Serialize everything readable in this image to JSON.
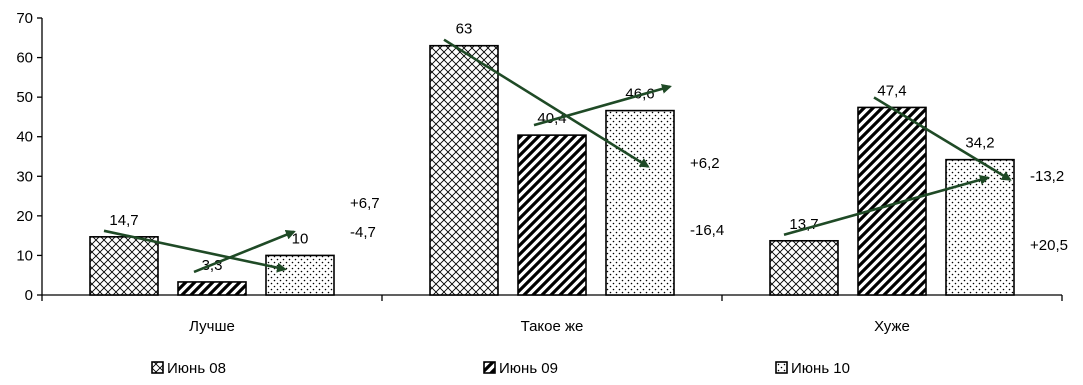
{
  "chart_data": {
    "type": "bar",
    "categories": [
      "Лучше",
      "Такое же",
      "Хуже"
    ],
    "series": [
      {
        "name": "Июнь 08",
        "values": [
          14.7,
          63,
          13.7
        ],
        "labels": [
          "14,7",
          "63",
          "13,7"
        ],
        "pattern": "crosshatch"
      },
      {
        "name": "Июнь 09",
        "values": [
          3.3,
          40.4,
          47.4
        ],
        "labels": [
          "3,3",
          "40,4",
          "47,4"
        ],
        "pattern": "diagonal"
      },
      {
        "name": "Июнь 10",
        "values": [
          10,
          46.6,
          34.2
        ],
        "labels": [
          "10",
          "46,6",
          "34,2"
        ],
        "pattern": "dots"
      }
    ],
    "ylim": [
      0,
      70
    ],
    "yticks": [
      0,
      10,
      20,
      30,
      40,
      50,
      60,
      70
    ],
    "grid": false,
    "legend_position": "bottom",
    "annotations": [
      {
        "category": 0,
        "from_series": 1,
        "to_series": 2,
        "text": "+6,7"
      },
      {
        "category": 0,
        "from_series": 0,
        "to_series": 2,
        "text": "-4,7"
      },
      {
        "category": 1,
        "from_series": 1,
        "to_series": 2,
        "text": "+6,2"
      },
      {
        "category": 1,
        "from_series": 0,
        "to_series": 2,
        "text": "-16,4"
      },
      {
        "category": 2,
        "from_series": 1,
        "to_series": 2,
        "text": "-13,2"
      },
      {
        "category": 2,
        "from_series": 0,
        "to_series": 2,
        "text": "+20,5"
      }
    ],
    "colors": {
      "bar_stroke": "#000000",
      "arrow": "#1f4a26",
      "axis": "#000000"
    }
  }
}
